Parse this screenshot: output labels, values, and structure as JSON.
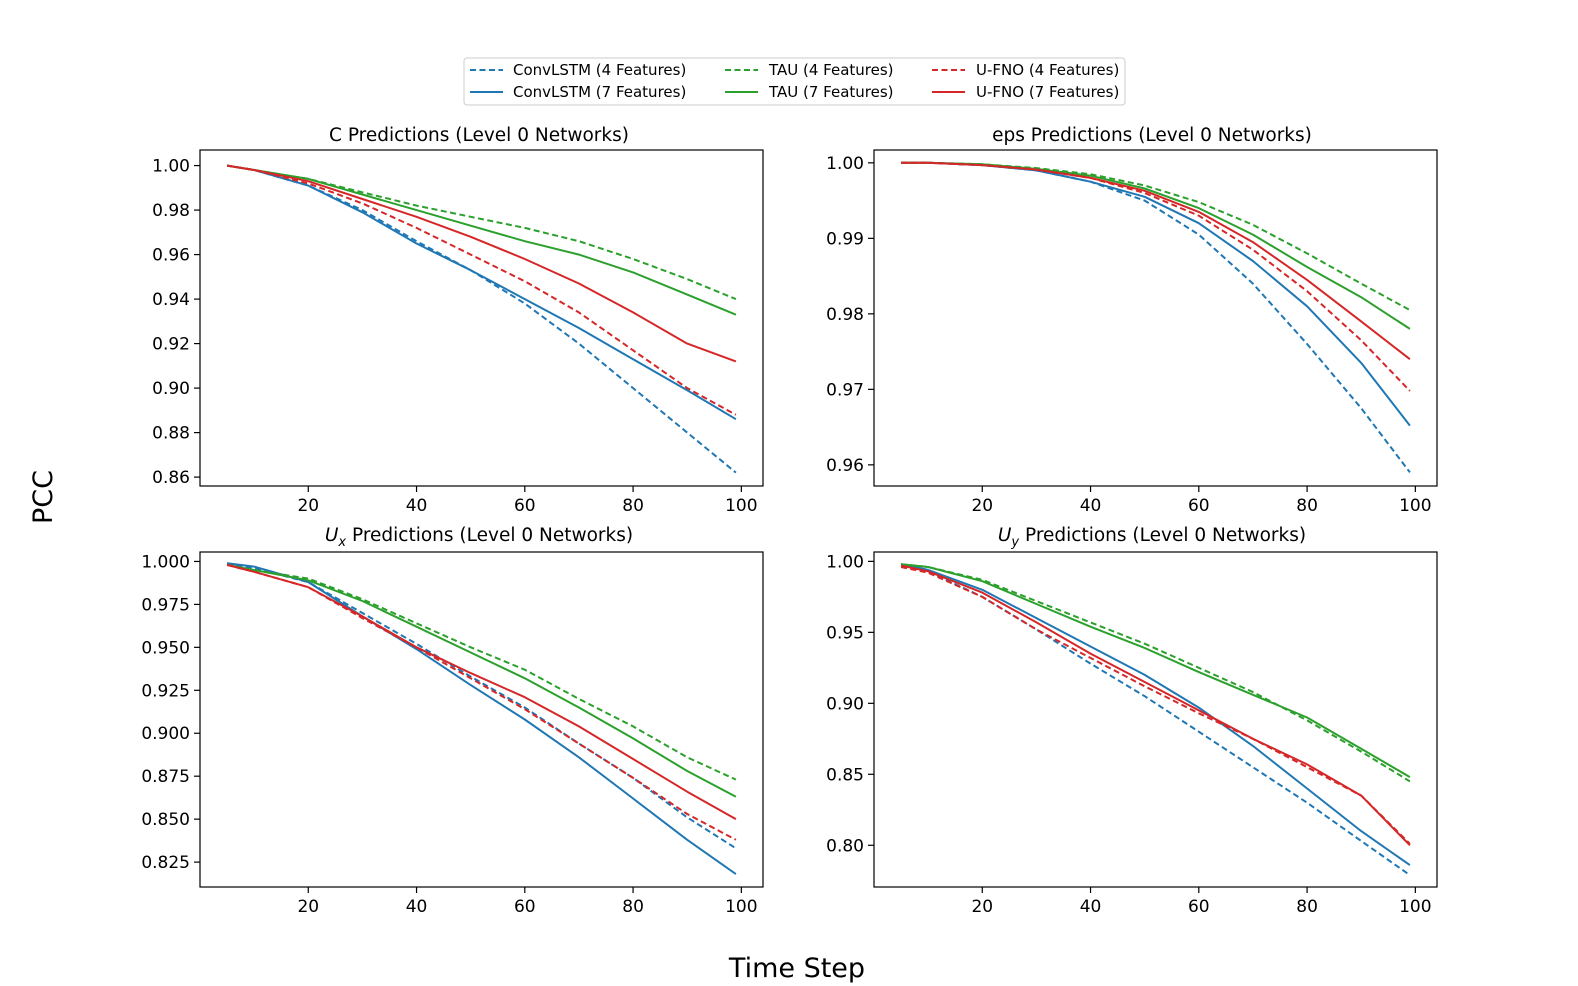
{
  "figure": {
    "xlabel": "Time Step",
    "ylabel": "PCC"
  },
  "series_styles": [
    {
      "name": "ConvLSTM (4 Features)",
      "color": "#1f77b4",
      "dashed": true
    },
    {
      "name": "ConvLSTM (7 Features)",
      "color": "#1f77b4",
      "dashed": false
    },
    {
      "name": "TAU (4 Features)",
      "color": "#2ca02c",
      "dashed": true
    },
    {
      "name": "TAU (7 Features)",
      "color": "#2ca02c",
      "dashed": false
    },
    {
      "name": "U-FNO (4 Features)",
      "color": "#d62728",
      "dashed": true
    },
    {
      "name": "U-FNO (7 Features)",
      "color": "#d62728",
      "dashed": false
    }
  ],
  "legend": {
    "placement": "top-center",
    "columns": 3
  },
  "chart_data": [
    {
      "type": "line",
      "title": "C Predictions (Level 0 Networks)",
      "xlabel": "",
      "ylabel": "",
      "xlim": [
        0,
        104
      ],
      "ylim": [
        0.856,
        1.007
      ],
      "xticks": [
        20,
        40,
        60,
        80,
        100
      ],
      "yticks": [
        0.86,
        0.88,
        0.9,
        0.92,
        0.94,
        0.96,
        0.98,
        1.0
      ],
      "ytick_labels": [
        "0.86",
        "0.88",
        "0.90",
        "0.92",
        "0.94",
        "0.96",
        "0.98",
        "1.00"
      ],
      "x": [
        5,
        10,
        20,
        30,
        40,
        50,
        60,
        70,
        80,
        90,
        99
      ],
      "series": [
        {
          "name": "ConvLSTM (4 Features)",
          "values": [
            1.0,
            0.998,
            0.991,
            0.98,
            0.966,
            0.953,
            0.938,
            0.92,
            0.9,
            0.88,
            0.862
          ]
        },
        {
          "name": "ConvLSTM (7 Features)",
          "values": [
            1.0,
            0.998,
            0.991,
            0.979,
            0.965,
            0.953,
            0.94,
            0.927,
            0.913,
            0.899,
            0.886
          ]
        },
        {
          "name": "TAU (4 Features)",
          "values": [
            1.0,
            0.998,
            0.994,
            0.988,
            0.982,
            0.977,
            0.972,
            0.966,
            0.958,
            0.949,
            0.94
          ]
        },
        {
          "name": "TAU (7 Features)",
          "values": [
            1.0,
            0.998,
            0.994,
            0.987,
            0.98,
            0.973,
            0.966,
            0.96,
            0.952,
            0.942,
            0.933
          ]
        },
        {
          "name": "U-FNO (4 Features)",
          "values": [
            1.0,
            0.998,
            0.992,
            0.983,
            0.972,
            0.96,
            0.948,
            0.934,
            0.917,
            0.9,
            0.888
          ]
        },
        {
          "name": "U-FNO (7 Features)",
          "values": [
            1.0,
            0.998,
            0.993,
            0.985,
            0.977,
            0.968,
            0.958,
            0.947,
            0.934,
            0.92,
            0.912
          ]
        }
      ]
    },
    {
      "type": "line",
      "title": "eps Predictions (Level 0 Networks)",
      "xlabel": "",
      "ylabel": "",
      "xlim": [
        0,
        104
      ],
      "ylim": [
        0.9572,
        1.0017
      ],
      "xticks": [
        20,
        40,
        60,
        80,
        100
      ],
      "yticks": [
        0.96,
        0.97,
        0.98,
        0.99,
        1.0
      ],
      "ytick_labels": [
        "0.96",
        "0.97",
        "0.98",
        "0.99",
        "1.00"
      ],
      "x": [
        5,
        10,
        20,
        30,
        40,
        50,
        60,
        70,
        80,
        90,
        99
      ],
      "series": [
        {
          "name": "ConvLSTM (4 Features)",
          "values": [
            1.0,
            1.0,
            0.9997,
            0.999,
            0.9975,
            0.995,
            0.9905,
            0.984,
            0.976,
            0.9675,
            0.959
          ]
        },
        {
          "name": "ConvLSTM (7 Features)",
          "values": [
            1.0,
            1.0,
            0.9997,
            0.999,
            0.9975,
            0.9955,
            0.992,
            0.987,
            0.981,
            0.9735,
            0.9652
          ]
        },
        {
          "name": "TAU (4 Features)",
          "values": [
            1.0,
            1.0,
            0.9998,
            0.9993,
            0.9985,
            0.997,
            0.9948,
            0.9918,
            0.988,
            0.984,
            0.9805
          ]
        },
        {
          "name": "TAU (7 Features)",
          "values": [
            1.0,
            1.0,
            0.9998,
            0.9992,
            0.9983,
            0.9966,
            0.994,
            0.9905,
            0.9862,
            0.9822,
            0.978
          ]
        },
        {
          "name": "U-FNO (4 Features)",
          "values": [
            1.0,
            1.0,
            0.9997,
            0.9991,
            0.998,
            0.996,
            0.993,
            0.9885,
            0.983,
            0.9765,
            0.9698
          ]
        },
        {
          "name": "U-FNO (7 Features)",
          "values": [
            1.0,
            1.0,
            0.9997,
            0.9991,
            0.998,
            0.9963,
            0.9935,
            0.9895,
            0.9845,
            0.979,
            0.974
          ]
        }
      ]
    },
    {
      "type": "line",
      "title": "U_x Predictions (Level 0 Networks)",
      "title_main": "U",
      "title_sub": "x",
      "title_rest": " Predictions (Level 0 Networks)",
      "xlabel": "",
      "ylabel": "",
      "xlim": [
        0,
        104
      ],
      "ylim": [
        0.8105,
        1.0055
      ],
      "xticks": [
        20,
        40,
        60,
        80,
        100
      ],
      "yticks": [
        0.825,
        0.85,
        0.875,
        0.9,
        0.925,
        0.95,
        0.975,
        1.0
      ],
      "ytick_labels": [
        "0.825",
        "0.850",
        "0.875",
        "0.900",
        "0.925",
        "0.950",
        "0.975",
        "1.000"
      ],
      "x": [
        5,
        10,
        20,
        30,
        40,
        50,
        60,
        70,
        80,
        90,
        99
      ],
      "series": [
        {
          "name": "ConvLSTM (4 Features)",
          "values": [
            0.999,
            0.996,
            0.988,
            0.97,
            0.952,
            0.933,
            0.915,
            0.894,
            0.874,
            0.851,
            0.833
          ]
        },
        {
          "name": "ConvLSTM (7 Features)",
          "values": [
            0.999,
            0.997,
            0.988,
            0.968,
            0.949,
            0.928,
            0.908,
            0.886,
            0.862,
            0.838,
            0.818
          ]
        },
        {
          "name": "TAU (4 Features)",
          "values": [
            0.998,
            0.995,
            0.99,
            0.978,
            0.964,
            0.95,
            0.937,
            0.92,
            0.904,
            0.886,
            0.873
          ]
        },
        {
          "name": "TAU (7 Features)",
          "values": [
            0.998,
            0.995,
            0.989,
            0.977,
            0.962,
            0.947,
            0.932,
            0.915,
            0.897,
            0.878,
            0.863
          ]
        },
        {
          "name": "U-FNO (4 Features)",
          "values": [
            0.998,
            0.994,
            0.985,
            0.967,
            0.95,
            0.932,
            0.914,
            0.894,
            0.874,
            0.853,
            0.838
          ]
        },
        {
          "name": "U-FNO (7 Features)",
          "values": [
            0.998,
            0.994,
            0.985,
            0.968,
            0.95,
            0.935,
            0.921,
            0.904,
            0.885,
            0.866,
            0.85
          ]
        }
      ]
    },
    {
      "type": "line",
      "title": "U_y Predictions (Level 0 Networks)",
      "title_main": "U",
      "title_sub": "y",
      "title_rest": " Predictions (Level 0 Networks)",
      "xlabel": "",
      "ylabel": "",
      "xlim": [
        0,
        104
      ],
      "ylim": [
        0.7706,
        1.0066
      ],
      "xticks": [
        20,
        40,
        60,
        80,
        100
      ],
      "yticks": [
        0.8,
        0.85,
        0.9,
        0.95,
        1.0
      ],
      "ytick_labels": [
        "0.80",
        "0.85",
        "0.90",
        "0.95",
        "1.00"
      ],
      "x": [
        5,
        10,
        20,
        30,
        40,
        50,
        60,
        70,
        80,
        90,
        99
      ],
      "series": [
        {
          "name": "ConvLSTM (4 Features)",
          "values": [
            0.998,
            0.993,
            0.975,
            0.952,
            0.928,
            0.905,
            0.88,
            0.855,
            0.83,
            0.803,
            0.779
          ]
        },
        {
          "name": "ConvLSTM (7 Features)",
          "values": [
            0.998,
            0.994,
            0.98,
            0.96,
            0.94,
            0.92,
            0.897,
            0.87,
            0.84,
            0.81,
            0.786
          ]
        },
        {
          "name": "TAU (4 Features)",
          "values": [
            0.998,
            0.996,
            0.987,
            0.972,
            0.957,
            0.942,
            0.925,
            0.908,
            0.888,
            0.866,
            0.845
          ]
        },
        {
          "name": "TAU (7 Features)",
          "values": [
            0.998,
            0.996,
            0.986,
            0.97,
            0.954,
            0.939,
            0.922,
            0.906,
            0.89,
            0.868,
            0.848
          ]
        },
        {
          "name": "U-FNO (4 Features)",
          "values": [
            0.996,
            0.992,
            0.975,
            0.952,
            0.932,
            0.912,
            0.893,
            0.875,
            0.855,
            0.835,
            0.801
          ]
        },
        {
          "name": "U-FNO (7 Features)",
          "values": [
            0.997,
            0.993,
            0.978,
            0.957,
            0.935,
            0.915,
            0.895,
            0.875,
            0.857,
            0.835,
            0.8
          ]
        }
      ]
    }
  ]
}
